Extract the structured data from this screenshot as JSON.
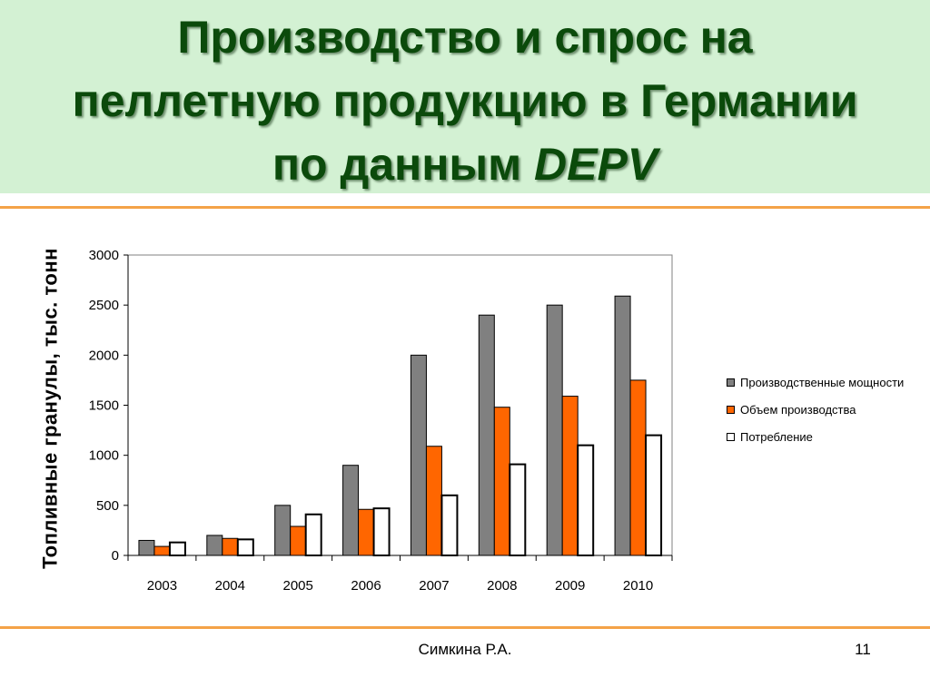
{
  "slide": {
    "title_line1": "Производство и спрос на",
    "title_line2": "пеллетную продукцию в Германии",
    "title_line3_prefix": "по данным ",
    "title_line3_em": "DEPV",
    "author": "Симкина Р.А.",
    "page_number": "11",
    "band_color": "#d3f1d3",
    "title_color": "#0b4a0b",
    "rule_color": "#f4a348"
  },
  "chart_data": {
    "type": "bar",
    "title": "",
    "xlabel": "",
    "ylabel": "Топливные гранулы, тыс. тонн",
    "categories": [
      "2003",
      "2004",
      "2005",
      "2006",
      "2007",
      "2008",
      "2009",
      "2010"
    ],
    "series": [
      {
        "name": "Производственные мощности",
        "color": "#808080",
        "values": [
          150,
          200,
          500,
          900,
          2000,
          2400,
          2500,
          2590
        ]
      },
      {
        "name": "Объем производства",
        "color": "#ff6600",
        "values": [
          90,
          170,
          290,
          460,
          1090,
          1480,
          1590,
          1750
        ]
      },
      {
        "name": "Потребление",
        "color": "#ffffff",
        "values": [
          130,
          160,
          410,
          470,
          600,
          910,
          1100,
          1200
        ]
      }
    ],
    "ylim": [
      0,
      3000
    ],
    "yticks": [
      0,
      500,
      1000,
      1500,
      2000,
      2500,
      3000
    ],
    "grid": false,
    "legend_position": "right"
  }
}
